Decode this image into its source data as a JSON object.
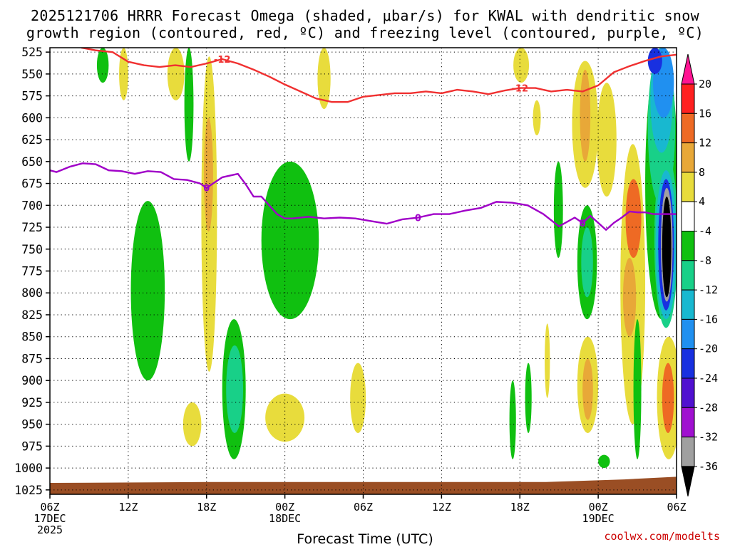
{
  "title_line1": "2025121706 HRRR Forecast Omega (shaded, μbar/s) for KWAL with dendritic snow",
  "title_line2": "growth region (contoured, red, ºC) and freezing level (contoured, purple, ºC)",
  "credit": "coolwx.com/modelts",
  "chart_data": {
    "type": "heatmap",
    "xlabel": "Forecast Time (UTC)",
    "x_ticks": [
      {
        "hour": 0,
        "lines": [
          "06Z",
          "17DEC",
          "2025"
        ]
      },
      {
        "hour": 6,
        "lines": [
          "12Z"
        ]
      },
      {
        "hour": 12,
        "lines": [
          "18Z"
        ]
      },
      {
        "hour": 18,
        "lines": [
          "00Z",
          "18DEC"
        ]
      },
      {
        "hour": 24,
        "lines": [
          "06Z"
        ]
      },
      {
        "hour": 30,
        "lines": [
          "12Z"
        ]
      },
      {
        "hour": 36,
        "lines": [
          "18Z"
        ]
      },
      {
        "hour": 42,
        "lines": [
          "00Z",
          "19DEC"
        ]
      },
      {
        "hour": 48,
        "lines": [
          "06Z"
        ]
      }
    ],
    "x_range_hours": [
      0,
      48
    ],
    "y_ticks": [
      525,
      550,
      575,
      600,
      625,
      650,
      675,
      700,
      725,
      750,
      775,
      800,
      825,
      850,
      875,
      900,
      925,
      950,
      975,
      1000,
      1025
    ],
    "y_range_hPa": [
      520,
      1030
    ],
    "grid": "dotted",
    "colorbar": {
      "labels": [
        "20",
        "16",
        "12",
        "8",
        "4",
        "-4",
        "-8",
        "-12",
        "-16",
        "-20",
        "-24",
        "-28",
        "-32",
        "-36"
      ],
      "colors": [
        "#ff1493",
        "#ff2020",
        "#ee6a24",
        "#e8a838",
        "#e8dc3c",
        "#ffffff",
        "#10c010",
        "#18d088",
        "#18b8d0",
        "#2090f0",
        "#1830e0",
        "#5010d0",
        "#a010d0",
        "#a0a0a0",
        "#000000"
      ]
    },
    "omega_regions": [
      {
        "t": [
          3.6,
          4.5
        ],
        "p": [
          520,
          560
        ],
        "v": -6
      },
      {
        "t": [
          5.3,
          6.0
        ],
        "p": [
          520,
          580
        ],
        "v": 5
      },
      {
        "t": [
          9.0,
          10.3
        ],
        "p": [
          520,
          580
        ],
        "v": 5
      },
      {
        "t": [
          10.3,
          11.0
        ],
        "p": [
          520,
          650
        ],
        "v": -6
      },
      {
        "t": [
          11.6,
          12.8
        ],
        "p": [
          530,
          890
        ],
        "v": 5
      },
      {
        "t": [
          11.8,
          12.5
        ],
        "p": [
          600,
          730
        ],
        "v": 10
      },
      {
        "t": [
          6.2,
          8.8
        ],
        "p": [
          695,
          900
        ],
        "v": -6
      },
      {
        "t": [
          13.2,
          15.0
        ],
        "p": [
          830,
          990
        ],
        "v": -6
      },
      {
        "t": [
          13.5,
          14.8
        ],
        "p": [
          860,
          960
        ],
        "v": -11
      },
      {
        "t": [
          16.2,
          20.6
        ],
        "p": [
          650,
          830
        ],
        "v": -6
      },
      {
        "t": [
          16.5,
          19.5
        ],
        "p": [
          915,
          970
        ],
        "v": 5
      },
      {
        "t": [
          10.2,
          11.6
        ],
        "p": [
          925,
          975
        ],
        "v": 5
      },
      {
        "t": [
          23.0,
          24.2
        ],
        "p": [
          880,
          960
        ],
        "v": 5
      },
      {
        "t": [
          20.5,
          21.5
        ],
        "p": [
          520,
          590
        ],
        "v": 5
      },
      {
        "t": [
          35.5,
          36.7
        ],
        "p": [
          520,
          560
        ],
        "v": 5
      },
      {
        "t": [
          38.6,
          39.3
        ],
        "p": [
          650,
          760
        ],
        "v": -6
      },
      {
        "t": [
          37.0,
          37.6
        ],
        "p": [
          580,
          620
        ],
        "v": 5
      },
      {
        "t": [
          35.2,
          35.7
        ],
        "p": [
          900,
          990
        ],
        "v": -6
      },
      {
        "t": [
          36.4,
          36.9
        ],
        "p": [
          880,
          960
        ],
        "v": -6
      },
      {
        "t": [
          37.9,
          38.3
        ],
        "p": [
          835,
          920
        ],
        "v": 5
      },
      {
        "t": [
          40.0,
          42.0
        ],
        "p": [
          535,
          680
        ],
        "v": 5
      },
      {
        "t": [
          40.6,
          41.4
        ],
        "p": [
          545,
          650
        ],
        "v": 10
      },
      {
        "t": [
          41.9,
          43.4
        ],
        "p": [
          560,
          690
        ],
        "v": 5
      },
      {
        "t": [
          40.4,
          41.9
        ],
        "p": [
          700,
          830
        ],
        "v": -6
      },
      {
        "t": [
          40.7,
          41.6
        ],
        "p": [
          725,
          805
        ],
        "v": -11
      },
      {
        "t": [
          40.4,
          42.0
        ],
        "p": [
          850,
          960
        ],
        "v": 5
      },
      {
        "t": [
          40.8,
          41.6
        ],
        "p": [
          875,
          945
        ],
        "v": 10
      },
      {
        "t": [
          42.0,
          42.9
        ],
        "p": [
          985,
          1000
        ],
        "v": -6
      },
      {
        "t": [
          43.7,
          45.6
        ],
        "p": [
          630,
          950
        ],
        "v": 5
      },
      {
        "t": [
          44.1,
          45.3
        ],
        "p": [
          670,
          760
        ],
        "v": 14
      },
      {
        "t": [
          43.9,
          44.9
        ],
        "p": [
          760,
          850
        ],
        "v": 10
      },
      {
        "t": [
          44.7,
          45.3
        ],
        "p": [
          830,
          990
        ],
        "v": -6
      },
      {
        "t": [
          46.5,
          48.3
        ],
        "p": [
          850,
          990
        ],
        "v": 5
      },
      {
        "t": [
          46.9,
          47.8
        ],
        "p": [
          880,
          960
        ],
        "v": 14
      },
      {
        "t": [
          45.6,
          48.1
        ],
        "p": [
          520,
          830
        ],
        "v": -6
      },
      {
        "t": [
          45.8,
          47.9
        ],
        "p": [
          520,
          700
        ],
        "v": -10
      },
      {
        "t": [
          46.0,
          47.7
        ],
        "p": [
          520,
          640
        ],
        "v": -14
      },
      {
        "t": [
          46.2,
          47.8
        ],
        "p": [
          520,
          600
        ],
        "v": -18
      },
      {
        "t": [
          45.8,
          46.9
        ],
        "p": [
          520,
          550
        ],
        "v": -22
      },
      {
        "t": [
          46.3,
          48.1
        ],
        "p": [
          640,
          840
        ],
        "v": -10
      },
      {
        "t": [
          46.4,
          48.0
        ],
        "p": [
          660,
          830
        ],
        "v": -14
      },
      {
        "t": [
          46.6,
          47.8
        ],
        "p": [
          670,
          820
        ],
        "v": -22
      },
      {
        "t": [
          46.8,
          47.7
        ],
        "p": [
          680,
          810
        ],
        "v": -32
      },
      {
        "t": [
          46.9,
          47.6
        ],
        "p": [
          690,
          805
        ],
        "v": -40
      }
    ],
    "dgz_minus12_contour": {
      "label": "-12",
      "hours": [
        2.4,
        3.5,
        4.8,
        6.0,
        7.2,
        8.4,
        9.6,
        10.8,
        12.0,
        13.2,
        14.4,
        15.6,
        16.8,
        18.0,
        19.2,
        20.4,
        21.6,
        22.8,
        24.0,
        25.2,
        26.4,
        27.6,
        28.8,
        30.0,
        31.2,
        32.4,
        33.6,
        34.8,
        36.0,
        37.2,
        38.4,
        39.6,
        40.8,
        42.0,
        43.2,
        44.4,
        45.6,
        46.8,
        48.0
      ],
      "hPa": [
        520,
        523,
        525,
        536,
        540,
        542,
        540,
        542,
        538,
        533,
        538,
        545,
        553,
        562,
        570,
        578,
        582,
        582,
        576,
        574,
        572,
        572,
        570,
        572,
        568,
        570,
        573,
        569,
        566,
        566,
        570,
        568,
        570,
        563,
        548,
        541,
        535,
        530,
        528
      ]
    },
    "freezing_level_0_contour": {
      "label": "0",
      "hours": [
        0,
        0.5,
        1.5,
        2.5,
        3.5,
        4.5,
        5.5,
        6.5,
        7.5,
        8.5,
        9.5,
        10.5,
        11.5,
        12.0,
        13.2,
        14.4,
        15.0,
        15.6,
        16.2,
        16.8,
        17.4,
        18.0,
        18.6,
        19.8,
        21.0,
        22.2,
        23.4,
        24.6,
        25.8,
        27.0,
        28.2,
        29.4,
        30.6,
        31.8,
        33.0,
        34.2,
        35.4,
        36.6,
        37.8,
        39.0,
        40.2,
        40.8,
        41.4,
        42.0,
        42.6,
        43.2,
        43.8,
        44.4,
        45.0,
        45.6,
        46.2,
        46.8,
        48.0
      ],
      "hPa": [
        660,
        662,
        656,
        652,
        653,
        660,
        661,
        664,
        661,
        662,
        670,
        671,
        675,
        680,
        668,
        664,
        676,
        690,
        690,
        700,
        710,
        715,
        715,
        713,
        715,
        714,
        715,
        718,
        721,
        716,
        714,
        710,
        710,
        706,
        703,
        696,
        697,
        700,
        710,
        724,
        714,
        720,
        712,
        720,
        728,
        720,
        714,
        707,
        708,
        708,
        710,
        710,
        710
      ]
    }
  }
}
